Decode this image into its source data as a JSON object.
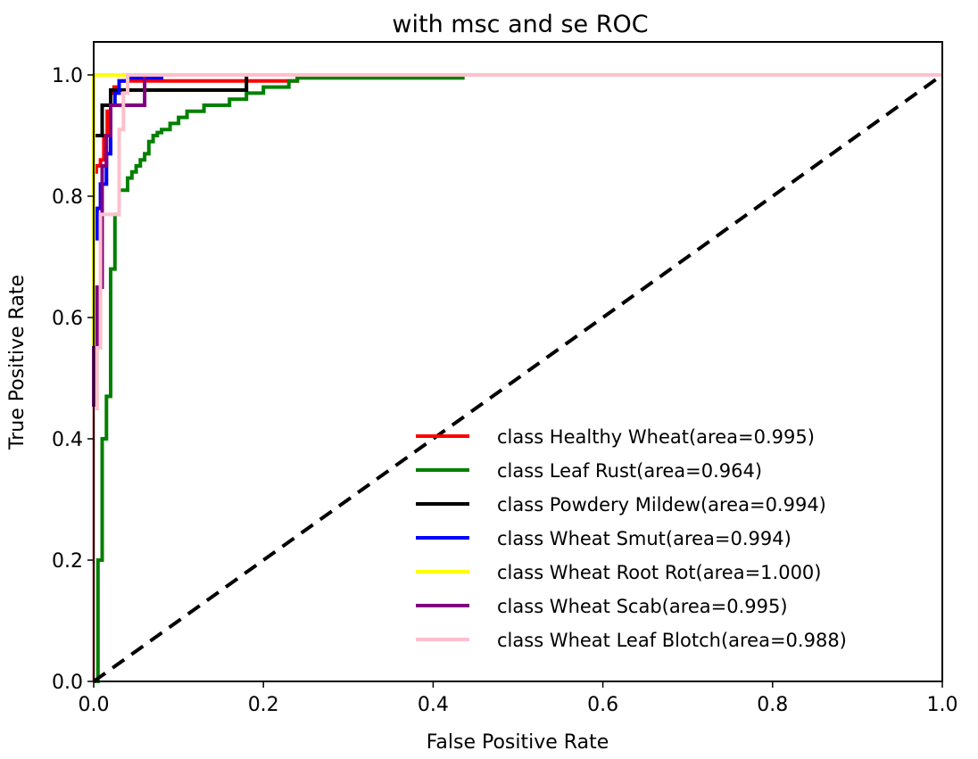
{
  "chart_data": {
    "type": "line",
    "title": "with msc and se ROC",
    "xlabel": "False Positive Rate",
    "ylabel": "True Positive Rate",
    "xlim": [
      0.0,
      1.0
    ],
    "ylim": [
      0.0,
      1.0
    ],
    "xticks": [
      "0.0",
      "0.2",
      "0.4",
      "0.6",
      "0.8",
      "1.0"
    ],
    "yticks": [
      "0.0",
      "0.2",
      "0.4",
      "0.6",
      "0.8",
      "1.0"
    ],
    "grid": false,
    "legend_position": "lower-right",
    "diagonal": {
      "x": [
        0,
        1
      ],
      "y": [
        0,
        1
      ],
      "color": "#000000",
      "style": "dashed"
    },
    "series": [
      {
        "name": "class Healthy Wheat(area=0.995)",
        "color": "#ff0000",
        "x": [
          0,
          0,
          0.003,
          0.003,
          0.008,
          0.008,
          0.012,
          0.012,
          0.016,
          0.016,
          0.02,
          0.02,
          0.024,
          0.024,
          0.03,
          0.03,
          0.24,
          0.24,
          1.0
        ],
        "y": [
          0,
          0.84,
          0.84,
          0.85,
          0.85,
          0.86,
          0.86,
          0.9,
          0.9,
          0.94,
          0.94,
          0.97,
          0.97,
          0.98,
          0.98,
          0.99,
          0.99,
          1.0,
          1.0
        ]
      },
      {
        "name": "class Leaf Rust(area=0.964)",
        "color": "#008000",
        "x": [
          0,
          0.005,
          0.005,
          0.01,
          0.01,
          0.015,
          0.015,
          0.02,
          0.02,
          0.025,
          0.025,
          0.03,
          0.03,
          0.04,
          0.04,
          0.045,
          0.045,
          0.05,
          0.05,
          0.055,
          0.055,
          0.06,
          0.06,
          0.065,
          0.065,
          0.07,
          0.07,
          0.075,
          0.075,
          0.08,
          0.08,
          0.09,
          0.09,
          0.1,
          0.1,
          0.11,
          0.11,
          0.13,
          0.13,
          0.16,
          0.16,
          0.18,
          0.18,
          0.2,
          0.2,
          0.23,
          0.23,
          0.24,
          0.24,
          0.25,
          0.25,
          0.435,
          0.435,
          1.0
        ],
        "y": [
          0,
          0,
          0.2,
          0.2,
          0.4,
          0.4,
          0.47,
          0.47,
          0.68,
          0.68,
          0.77,
          0.77,
          0.81,
          0.81,
          0.83,
          0.83,
          0.84,
          0.84,
          0.85,
          0.85,
          0.86,
          0.86,
          0.87,
          0.87,
          0.89,
          0.89,
          0.9,
          0.9,
          0.905,
          0.905,
          0.91,
          0.91,
          0.92,
          0.92,
          0.93,
          0.93,
          0.94,
          0.94,
          0.95,
          0.95,
          0.96,
          0.96,
          0.97,
          0.97,
          0.98,
          0.98,
          0.99,
          0.99,
          0.995,
          0.995,
          0.995,
          0.995,
          1.0,
          1.0
        ]
      },
      {
        "name": "class Powdery Mildew(area=0.994)",
        "color": "#000000",
        "x": [
          0,
          0,
          0.01,
          0.01,
          0.02,
          0.02,
          0.18,
          0.18,
          1.0
        ],
        "y": [
          0,
          0.9,
          0.9,
          0.95,
          0.95,
          0.975,
          0.975,
          1.0,
          1.0
        ]
      },
      {
        "name": "class Wheat Smut(area=0.994)",
        "color": "#0000ff",
        "x": [
          0,
          0,
          0.004,
          0.004,
          0.008,
          0.008,
          0.015,
          0.015,
          0.02,
          0.02,
          0.025,
          0.025,
          0.03,
          0.03,
          0.04,
          0.04,
          0.08,
          0.08,
          1.0
        ],
        "y": [
          0,
          0.73,
          0.73,
          0.78,
          0.78,
          0.82,
          0.82,
          0.87,
          0.87,
          0.95,
          0.95,
          0.97,
          0.97,
          0.99,
          0.99,
          0.995,
          0.995,
          1.0,
          1.0
        ]
      },
      {
        "name": "class Wheat Root Rot(area=1.000)",
        "color": "#ffff00",
        "x": [
          0,
          0,
          1.0
        ],
        "y": [
          0,
          1.0,
          1.0
        ]
      },
      {
        "name": "class Wheat Scab(area=0.995)",
        "color": "#800080",
        "x": [
          0,
          0,
          0.004,
          0.004,
          0.01,
          0.01,
          0.015,
          0.015,
          0.02,
          0.02,
          0.06,
          0.06,
          1.0
        ],
        "y": [
          0,
          0.55,
          0.55,
          0.65,
          0.65,
          0.85,
          0.85,
          0.9,
          0.9,
          0.95,
          0.95,
          1.0,
          1.0
        ]
      },
      {
        "name": "class Wheat Leaf Blotch(area=0.988)",
        "color": "#ffc0cb",
        "x": [
          0,
          0,
          0.004,
          0.004,
          0.008,
          0.008,
          0.012,
          0.012,
          0.03,
          0.03,
          0.035,
          0.035,
          0.04,
          0.04,
          1.0
        ],
        "y": [
          0,
          0.45,
          0.45,
          0.55,
          0.55,
          0.77,
          0.77,
          0.77,
          0.77,
          0.91,
          0.91,
          0.97,
          0.97,
          1.0,
          1.0
        ]
      }
    ]
  }
}
